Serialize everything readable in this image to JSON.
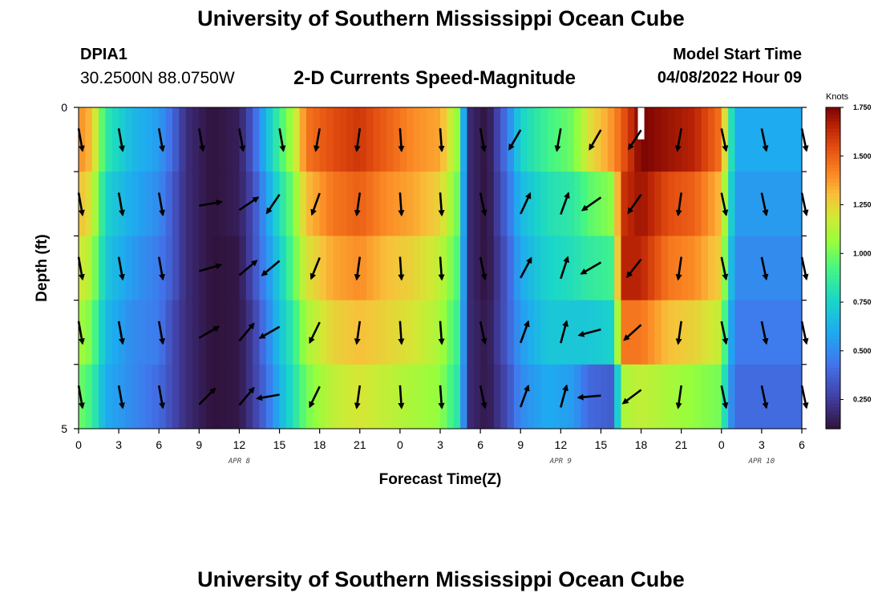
{
  "header": {
    "title": "University of Southern Mississippi Ocean Cube",
    "station_id": "DPIA1",
    "coords": "30.2500N  88.0750W",
    "subtitle": "2-D Currents Speed-Magnitude",
    "model_start_label": "Model Start Time",
    "model_start_value": "04/08/2022 Hour 09"
  },
  "footer": {
    "title": "University of Southern Mississippi Ocean Cube"
  },
  "chart_data": {
    "type": "heatmap",
    "xlabel": "Forecast Time(Z)",
    "ylabel": "Depth (ft)",
    "x_tick_labels": [
      "0",
      "3",
      "6",
      "9",
      "12",
      "15",
      "18",
      "21",
      "0",
      "3",
      "6",
      "9",
      "12",
      "15",
      "18",
      "21",
      "0",
      "3",
      "6"
    ],
    "date_labels": [
      {
        "text": "APR 8",
        "tick_index": 4
      },
      {
        "text": "APR 9",
        "tick_index": 12
      },
      {
        "text": "APR 10",
        "tick_index": 17
      }
    ],
    "y_tick_labels": [
      "0",
      "5"
    ],
    "ylim": [
      0,
      5
    ],
    "depth_layers": [
      0.5,
      1.5,
      2.5,
      3.5,
      4.5
    ],
    "colorbar": {
      "unit": "Knots",
      "range": [
        0.1,
        1.75
      ],
      "ticks": [
        "1.750",
        "1.500",
        "1.250",
        "1.000",
        "0.750",
        "0.500",
        "0.250"
      ],
      "tick_values": [
        1.75,
        1.5,
        1.25,
        1.0,
        0.75,
        0.5,
        0.25
      ]
    },
    "speed_keypoints": [
      [
        0,
        [
          1.4,
          1.3,
          1.2,
          1.1,
          1.0
        ]
      ],
      [
        1,
        [
          1.3,
          1.2,
          1.1,
          1.0,
          0.9
        ]
      ],
      [
        2,
        [
          0.85,
          0.75,
          0.7,
          0.65,
          0.6
        ]
      ],
      [
        4,
        [
          0.65,
          0.6,
          0.55,
          0.5,
          0.5
        ]
      ],
      [
        6,
        [
          0.55,
          0.5,
          0.45,
          0.45,
          0.4
        ]
      ],
      [
        7,
        [
          0.4,
          0.35,
          0.35,
          0.3,
          0.3
        ]
      ],
      [
        8,
        [
          0.2,
          0.2,
          0.2,
          0.2,
          0.2
        ]
      ],
      [
        10,
        [
          0.1,
          0.1,
          0.1,
          0.1,
          0.1
        ]
      ],
      [
        12,
        [
          0.15,
          0.15,
          0.12,
          0.12,
          0.12
        ]
      ],
      [
        13,
        [
          0.35,
          0.3,
          0.3,
          0.25,
          0.25
        ]
      ],
      [
        14,
        [
          0.65,
          0.55,
          0.5,
          0.45,
          0.4
        ]
      ],
      [
        15,
        [
          0.9,
          0.8,
          0.72,
          0.68,
          0.62
        ]
      ],
      [
        16,
        [
          1.1,
          1.0,
          0.95,
          0.85,
          0.8
        ]
      ],
      [
        17,
        [
          1.45,
          1.3,
          1.2,
          1.1,
          1.0
        ]
      ],
      [
        19,
        [
          1.55,
          1.45,
          1.35,
          1.25,
          1.15
        ]
      ],
      [
        21,
        [
          1.6,
          1.5,
          1.4,
          1.3,
          1.2
        ]
      ],
      [
        23,
        [
          1.5,
          1.4,
          1.3,
          1.25,
          1.15
        ]
      ],
      [
        25,
        [
          1.4,
          1.35,
          1.25,
          1.2,
          1.1
        ]
      ],
      [
        27,
        [
          1.35,
          1.25,
          1.15,
          1.1,
          1.05
        ]
      ],
      [
        28.5,
        [
          1.0,
          0.95,
          0.9,
          0.85,
          0.8
        ]
      ],
      [
        29,
        [
          0.2,
          0.2,
          0.2,
          0.2,
          0.2
        ]
      ],
      [
        30.5,
        [
          0.1,
          0.1,
          0.1,
          0.12,
          0.12
        ]
      ],
      [
        32,
        [
          0.45,
          0.4,
          0.35,
          0.35,
          0.3
        ]
      ],
      [
        33,
        [
          0.75,
          0.65,
          0.6,
          0.55,
          0.5
        ]
      ],
      [
        35,
        [
          0.9,
          0.8,
          0.75,
          0.7,
          0.6
        ]
      ],
      [
        37,
        [
          1.0,
          0.85,
          0.8,
          0.7,
          0.55
        ]
      ],
      [
        38,
        [
          1.2,
          0.95,
          0.85,
          0.7,
          0.4
        ]
      ],
      [
        40,
        [
          1.4,
          1.05,
          0.9,
          0.75,
          0.35
        ]
      ],
      [
        40.5,
        [
          1.5,
          1.6,
          1.65,
          1.45,
          1.1
        ]
      ],
      [
        42,
        [
          1.75,
          1.7,
          1.65,
          1.45,
          1.15
        ]
      ],
      [
        44,
        [
          1.7,
          1.55,
          1.45,
          1.3,
          1.1
        ]
      ],
      [
        46,
        [
          1.65,
          1.5,
          1.4,
          1.25,
          1.05
        ]
      ],
      [
        48,
        [
          1.45,
          1.3,
          1.25,
          1.15,
          1.0
        ]
      ],
      [
        48.5,
        [
          1.0,
          0.9,
          0.8,
          0.7,
          0.6
        ]
      ],
      [
        49,
        [
          0.6,
          0.55,
          0.5,
          0.45,
          0.4
        ]
      ],
      [
        54,
        [
          0.6,
          0.55,
          0.5,
          0.45,
          0.4
        ]
      ]
    ],
    "arrow_times": [
      0,
      3,
      6,
      9,
      12,
      15,
      18,
      21,
      24,
      27,
      30,
      33,
      36,
      39,
      42,
      45,
      48,
      51,
      54
    ],
    "arrow_directions_deg": [
      [
        170,
        170,
        170,
        170,
        170,
        170,
        190,
        188,
        176,
        176,
        170,
        210,
        190,
        210,
        213,
        190,
        168,
        168,
        168
      ],
      [
        170,
        170,
        170,
        80,
        56,
        214,
        200,
        188,
        176,
        176,
        168,
        25,
        20,
        235,
        215,
        188,
        168,
        168,
        168
      ],
      [
        170,
        170,
        170,
        74,
        50,
        230,
        202,
        188,
        176,
        176,
        168,
        28,
        18,
        240,
        218,
        188,
        168,
        168,
        168
      ],
      [
        170,
        170,
        170,
        60,
        40,
        240,
        206,
        188,
        176,
        176,
        168,
        20,
        15,
        255,
        228,
        188,
        168,
        168,
        168
      ],
      [
        170,
        170,
        170,
        45,
        40,
        260,
        206,
        188,
        176,
        176,
        168,
        20,
        15,
        265,
        233,
        188,
        168,
        168,
        168
      ]
    ],
    "marker_time": 42
  }
}
